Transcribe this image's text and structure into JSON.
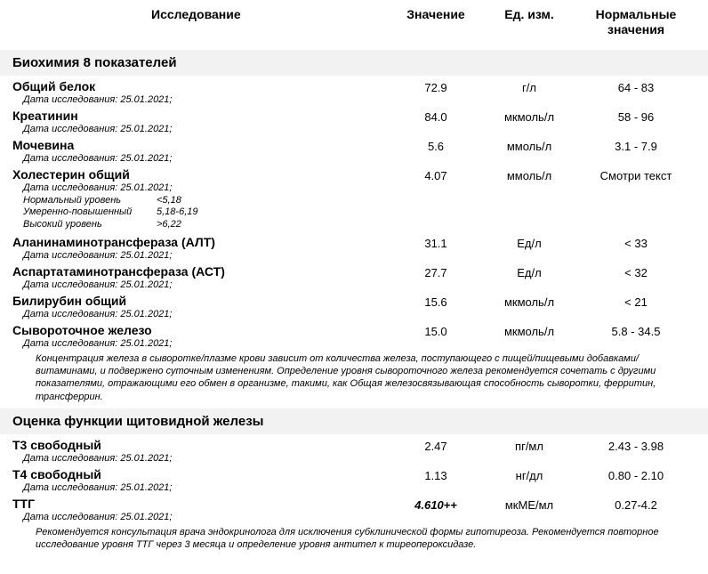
{
  "header": {
    "col_name": "Исследование",
    "col_value": "Значение",
    "col_unit": "Ед. изм.",
    "col_ref_l1": "Нормальные",
    "col_ref_l2": "значения"
  },
  "sections": {
    "biochem": {
      "title": "Биохимия 8 показателей",
      "rows": {
        "total_protein": {
          "name": "Общий белок",
          "date": "Дата исследования: 25.01.2021;",
          "value": "72.9",
          "unit": "г/л",
          "ref": "64 - 83"
        },
        "creatinine": {
          "name": "Креатинин",
          "date": "Дата исследования: 25.01.2021;",
          "value": "84.0",
          "unit": "мкмоль/л",
          "ref": "58 - 96"
        },
        "urea": {
          "name": "Мочевина",
          "date": "Дата исследования: 25.01.2021;",
          "value": "5.6",
          "unit": "ммоль/л",
          "ref": "3.1 - 7.9"
        },
        "cholesterol": {
          "name": "Холестерин общий",
          "date": "Дата исследования: 25.01.2021;",
          "value": "4.07",
          "unit": "ммоль/л",
          "ref": "Смотри текст",
          "sublines": {
            "a_label": "Нормальный уровень",
            "a_val": "<5,18",
            "b_label": "Умеренно-повышенный",
            "b_val": "5,18-6,19",
            "c_label": "Высокий уровень",
            "c_val": ">6,22"
          }
        },
        "alt": {
          "name": "Аланинаминотрансфераза (АЛТ)",
          "date": "Дата исследования: 25.01.2021;",
          "value": "31.1",
          "unit": "Ед/л",
          "ref": "< 33"
        },
        "ast": {
          "name": "Аспартатаминотрансфераза (АСТ)",
          "date": "Дата исследования: 25.01.2021;",
          "value": "27.7",
          "unit": "Ед/л",
          "ref": "< 32"
        },
        "bilirubin": {
          "name": "Билирубин общий",
          "date": "Дата исследования: 25.01.2021;",
          "value": "15.6",
          "unit": "мкмоль/л",
          "ref": "< 21"
        },
        "serum_iron": {
          "name": "Сывороточное железо",
          "date": "Дата исследования: 25.01.2021;",
          "value": "15.0",
          "unit": "мкмоль/л",
          "ref": "5.8 - 34.5",
          "note": "Концентрация железа в сыворотке/плазме крови зависит от количества железа, поступающего с пищей/пищевыми добавками/витаминами, и подвержено суточным изменениям. Определение уровня сывороточного железа рекомендуется сочетать с другими показателями, отражающими его обмен в организме, такими, как Общая железосвязывающая способность сыворотки, ферритин, трансферрин."
        }
      }
    },
    "thyroid": {
      "title": "Оценка функции щитовидной железы",
      "rows": {
        "t3_free": {
          "name": "Т3 свободный",
          "date": "Дата исследования: 25.01.2021;",
          "value": "2.47",
          "unit": "пг/мл",
          "ref": "2.43 - 3.98"
        },
        "t4_free": {
          "name": "Т4 свободный",
          "date": "Дата исследования: 25.01.2021;",
          "value": "1.13",
          "unit": "нг/дл",
          "ref": "0.80 - 2.10"
        },
        "tsh": {
          "name": "ТТГ",
          "date": "Дата исследования: 25.01.2021;",
          "value": "4.610++",
          "unit": "мкМЕ/мл",
          "ref": "0.27-4.2",
          "flag": true,
          "note": "Рекомендуется консультация врача эндокринолога для исключения субклинической формы гипотиреоза. Рекомендуется повторное исследование уровня ТТГ через 3 месяца и определение уровня антител к тиреопероксидазе."
        }
      }
    }
  }
}
